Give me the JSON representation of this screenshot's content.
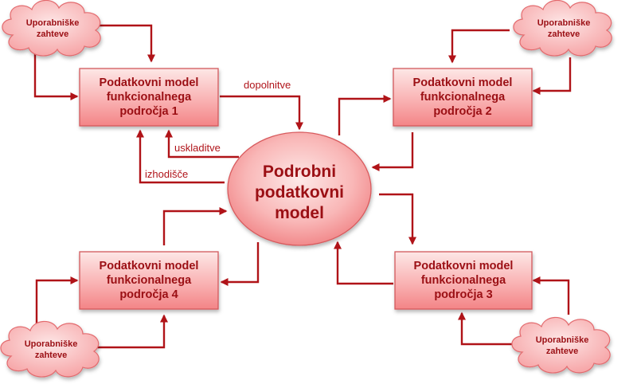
{
  "diagram": {
    "center": {
      "lines": [
        "Podrobni",
        "podatkovni",
        "model"
      ]
    },
    "boxes": [
      {
        "id": "box-1",
        "lines": [
          "Podatkovni model",
          "funkcionalnega",
          "področja 1"
        ]
      },
      {
        "id": "box-2",
        "lines": [
          "Podatkovni model",
          "funkcionalnega",
          "področja 2"
        ]
      },
      {
        "id": "box-3",
        "lines": [
          "Podatkovni model",
          "funkcionalnega",
          "področja 3"
        ]
      },
      {
        "id": "box-4",
        "lines": [
          "Podatkovni model",
          "funkcionalnega",
          "področja 4"
        ]
      }
    ],
    "clouds": [
      {
        "id": "cloud-1",
        "lines": [
          "Uporabniške",
          "zahteve"
        ]
      },
      {
        "id": "cloud-2",
        "lines": [
          "Uporabniške",
          "zahteve"
        ]
      },
      {
        "id": "cloud-3",
        "lines": [
          "Uporabniške",
          "zahteve"
        ]
      },
      {
        "id": "cloud-4",
        "lines": [
          "Uporabniške",
          "zahteve"
        ]
      }
    ],
    "edge_labels": {
      "dopolnitve": "dopolnitve",
      "uskladitve": "uskladitve",
      "izhodisce": "izhodišče"
    },
    "colors": {
      "arrow": "#b01318",
      "box_fill_top": "#fde3e2",
      "box_fill_bottom": "#f58c8e",
      "box_border": "#d2595c",
      "text": "#9b0f14"
    }
  }
}
